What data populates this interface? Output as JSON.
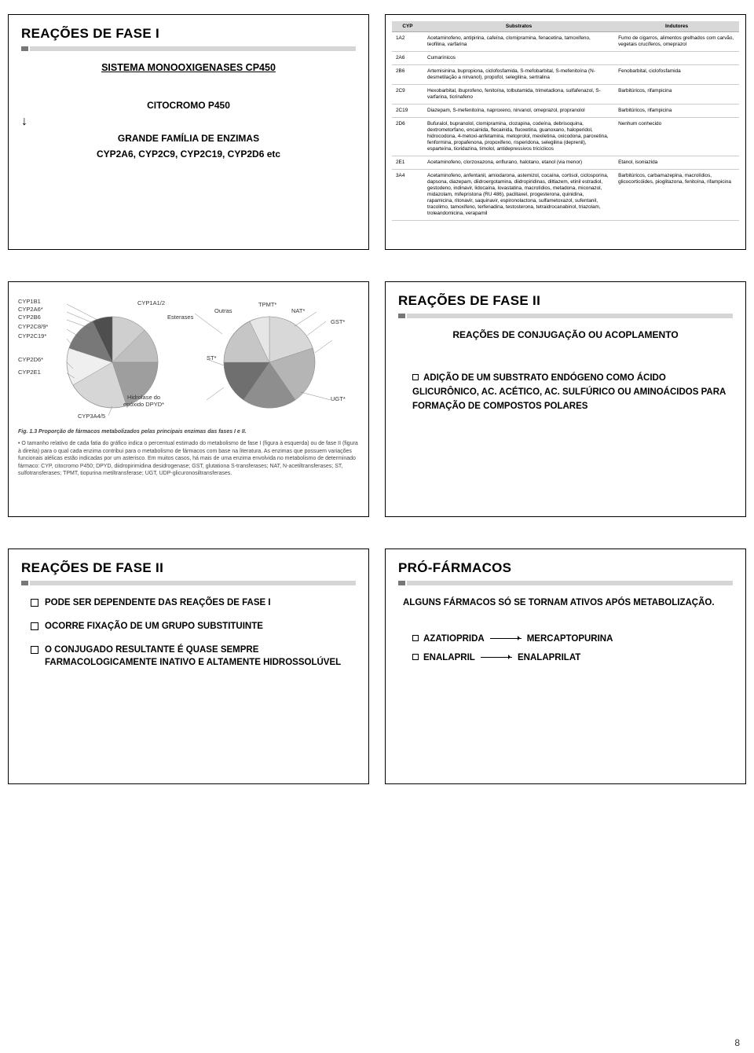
{
  "page_number": "8",
  "slides": {
    "s1": {
      "title": "REAÇÕES DE FASE I",
      "subtitle": "SISTEMA MONOOXIGENASES CP450",
      "line1": "CITOCROMO P450",
      "line2": "GRANDE FAMÍLIA DE ENZIMAS",
      "line3": "CYP2A6, CYP2C9, CYP2C19, CYP2D6 etc"
    },
    "s2": {
      "headers": [
        "CYP",
        "Substratos",
        "Indutores"
      ],
      "rows": [
        [
          "1A2",
          "Acetaminofeno, antipirina, cafeína, clomipramina, fenacetina, tamoxifeno, teofilina, varfarina",
          "Fumo de cigarros, alimentos grelhados com carvão, vegetais crucíferos, omeprazol"
        ],
        [
          "2A6",
          "Cumarínicos",
          ""
        ],
        [
          "2B6",
          "Artemisinina, bupropiona, ciclofosfamida, S-mefobarbital, S-mefenitoína (N-desmetilação a nirvanol), propofol, selegilina, sertralina",
          "Fenobarbital, ciclofosfamida"
        ],
        [
          "2C9",
          "Hexobarbital, ibuprofeno, fenitoína, tolbutamida, trimetadiona, sulfafenazol, S-varfarina, ticrinafeno",
          "Barbitúricos, rifampicina"
        ],
        [
          "2C19",
          "Diazepam, S-mefenitoína, naproxeno, nirvanol, omeprazol, propranolol",
          "Barbitúricos, rifampicina"
        ],
        [
          "2D6",
          "Bufuralol, bupranolol, clomipramina, clozapina, codeína, debrisoquina, dextrometorfano, encainida, flecainida, fluoxetina, guanoxano, haloperidol, hidrocodona, 4-metoxi-anfetamina, metoprolol, mexiletina, oxicodona, paroxetina, fenformina, propafenona, propoxifeno, risperidona, selegilina (deprenil), esparteína, tioridazina, timolol, antidepressivos tricíclicos",
          "Nenhum conhecido"
        ],
        [
          "2E1",
          "Acetaminofeno, clorzoxazona, enflurano, halotano, etanol (via menor)",
          "Etanol, isoniazida"
        ],
        [
          "3A4",
          "Acetaminofeno, anfentanil, amiodarona, astemizol, cocaína, cortisol, ciclosporina, dapsona, diazepam, diidroergotamina, diidropiridinas, diltiazem, etinil estradiol, gestodeno, indinavir, lidocaína, lovastatina, macrolídios, metadona, miconazol, midazolam, mifepristona (RU 486), paclitaxel, progesterona, quinidina, rapamicina, ritonavir, saquinavir, espironolactona, sulfametoxazol, sufentanil, tracolimo, tamoxifeno, terfenadina, testosterona, tetraidrocanabinol, triazolam, troleandomicina, verapamil",
          "Barbitúricos, carbamazepina, macrolídios, glicocorticóides, pioglitazona, fenitoína, rifampicina"
        ]
      ]
    },
    "s3": {
      "labels_left": [
        "CYP1B1",
        "CYP2A6*",
        "CYP2B6",
        "CYP2C8/9*",
        "CYP2C19*",
        "CYP2D6*",
        "CYP2E1",
        "CYP3A4/5"
      ],
      "labels_mid": [
        "CYP1A1/2",
        "Esterases",
        "Hidrolase do epóxido DPYD*"
      ],
      "labels_right": [
        "Outras",
        "TPMT*",
        "NAT*",
        "GST*",
        "ST*",
        "UGT*"
      ],
      "caption_bold": "Fig. 1.3 Proporção de fármacos metabolizados pelas principais enzimas das fases I e II.",
      "caption": "• O tamanho relativo de cada fatia do gráfico indica o percentual estimado do metabolismo de fase I (figura à esquerda) ou de fase II (figura à direita) para o qual cada enzima contribui para o metabolismo de fármacos com base na literatura. As enzimas que possuem variações funcionais alélicas estão indicadas por um asterisco. Em muitos casos, há mais de uma enzima envolvida no metabolismo de determinado fármaco: CYP, citocromo P450; DPYD, diidropirimidina desidrogenase; GST, glutationa S-transferases; NAT, N-acetiltransferases; ST, sulfotransferases; TPMT, tiopurina metiltransferase; UGT, UDP-glicuronosiltransferases.",
      "pie_colors": {
        "left": [
          "#ececec",
          "#c9c9c9",
          "#777777",
          "#444444",
          "#bcbcbc",
          "#9a9a9a",
          "#e0e0e0",
          "#d0d0d0"
        ],
        "right": [
          "#d8d8d8",
          "#b5b5b5",
          "#8e8e8e",
          "#6f6f6f",
          "#c6c6c6",
          "#e6e6e6"
        ]
      }
    },
    "s4": {
      "title": "REAÇÕES DE FASE II",
      "subtitle": "REAÇÕES DE CONJUGAÇÃO OU ACOPLAMENTO",
      "item": "ADIÇÃO DE UM SUBSTRATO ENDÓGENO COMO ÁCIDO GLICURÔNICO, AC. ACÉTICO, AC. SULFÚRICO OU AMINOÁCIDOS PARA FORMAÇÃO DE COMPOSTOS  POLARES"
    },
    "s5": {
      "title": "REAÇÕES DE FASE II",
      "items": [
        "PODE SER DEPENDENTE DAS REAÇÕES DE FASE I",
        "OCORRE FIXAÇÃO DE UM GRUPO SUBSTITUINTE",
        "O CONJUGADO RESULTANTE É QUASE SEMPRE FARMACOLOGICAMENTE INATIVO E ALTAMENTE HIDROSSOLÚVEL"
      ]
    },
    "s6": {
      "title": "PRÓ-FÁRMACOS",
      "line1": "ALGUNS FÁRMACOS SÓ SE TORNAM ATIVOS APÓS METABOLIZAÇÃO.",
      "r1a": "AZATIOPRIDA",
      "r1b": "MERCAPTOPURINA",
      "r2a": "ENALAPRIL",
      "r2b": "ENALAPRILAT"
    }
  }
}
